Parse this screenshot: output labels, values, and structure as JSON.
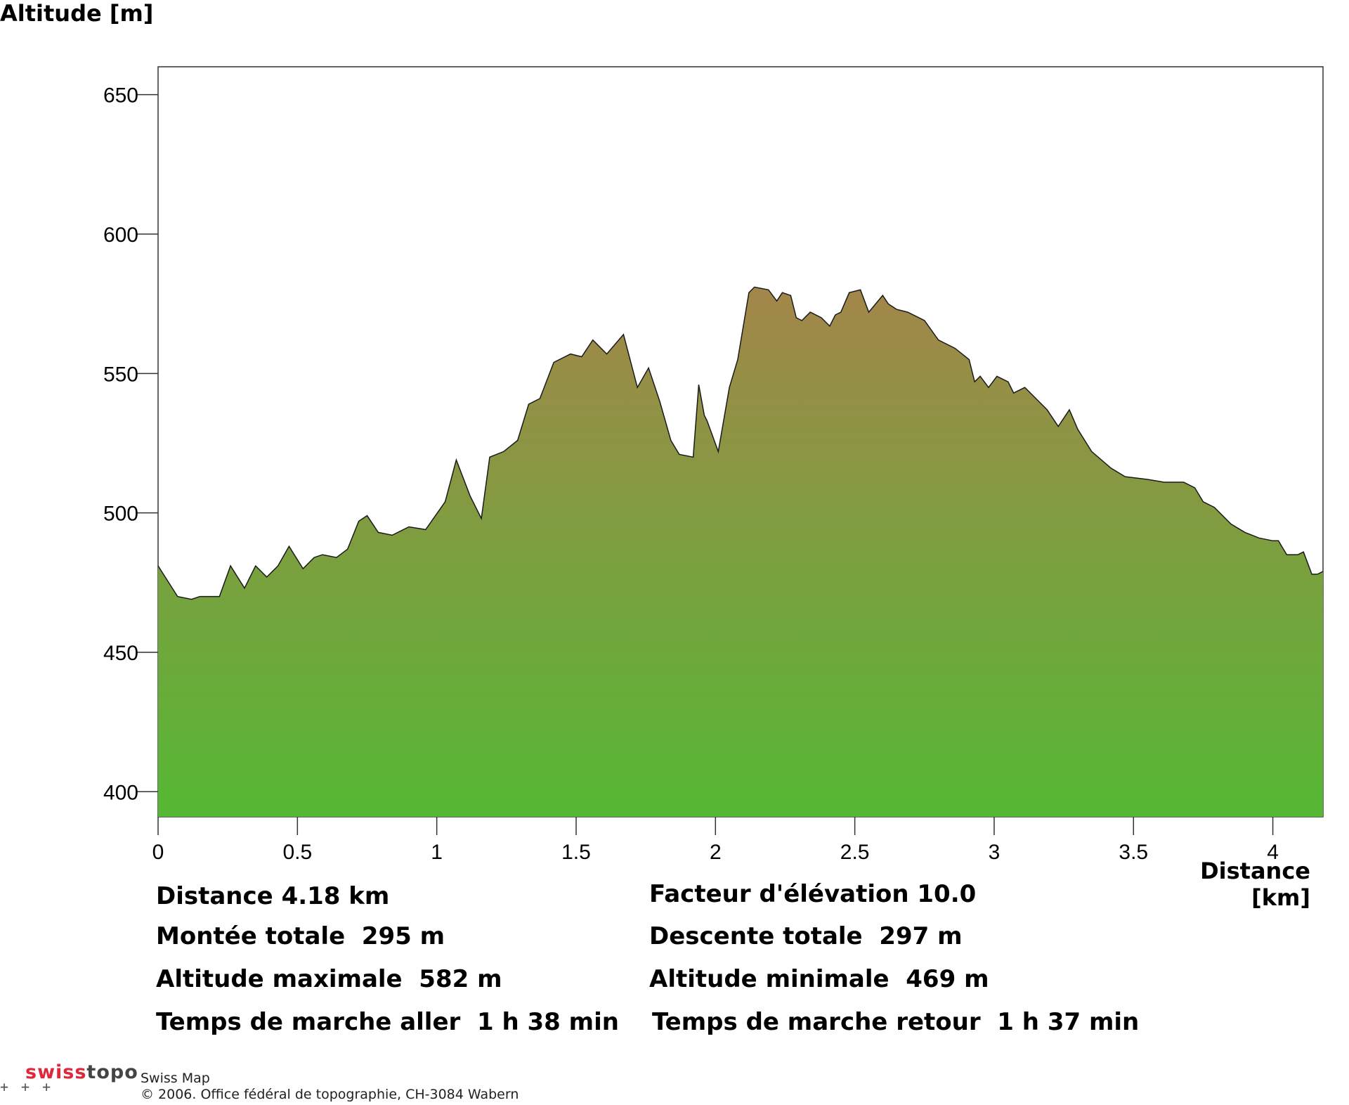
{
  "chart_data": {
    "type": "area",
    "ylabel": "Altitude [m]",
    "xlabel": "Distance [km]",
    "xlim": [
      0,
      4.18
    ],
    "ylim": [
      391,
      660
    ],
    "xticks": [
      "0",
      "0.5",
      "1",
      "1.5",
      "2",
      "2.5",
      "3",
      "3.5",
      "4"
    ],
    "yticks": [
      "400",
      "450",
      "500",
      "550",
      "600",
      "650"
    ],
    "colors": {
      "fill_top": "#a3864a",
      "fill_bottom": "#55b834",
      "stroke": "#1a1a1a"
    },
    "x": [
      0,
      0.07,
      0.12,
      0.15,
      0.19,
      0.22,
      0.26,
      0.31,
      0.35,
      0.39,
      0.43,
      0.47,
      0.52,
      0.56,
      0.59,
      0.64,
      0.68,
      0.72,
      0.75,
      0.79,
      0.84,
      0.88,
      0.9,
      0.96,
      1.03,
      1.07,
      1.12,
      1.16,
      1.19,
      1.24,
      1.29,
      1.33,
      1.37,
      1.42,
      1.48,
      1.52,
      1.56,
      1.61,
      1.67,
      1.72,
      1.76,
      1.8,
      1.84,
      1.87,
      1.92,
      1.94,
      1.96,
      1.97,
      2.01,
      2.05,
      2.08,
      2.12,
      2.14,
      2.19,
      2.22,
      2.24,
      2.27,
      2.29,
      2.31,
      2.34,
      2.38,
      2.41,
      2.43,
      2.45,
      2.48,
      2.52,
      2.55,
      2.6,
      2.62,
      2.65,
      2.69,
      2.75,
      2.8,
      2.86,
      2.91,
      2.93,
      2.95,
      2.98,
      3.01,
      3.05,
      3.07,
      3.11,
      3.16,
      3.19,
      3.23,
      3.27,
      3.3,
      3.35,
      3.42,
      3.47,
      3.55,
      3.61,
      3.68,
      3.72,
      3.75,
      3.79,
      3.85,
      3.9,
      3.95,
      4.0,
      4.02,
      4.05,
      4.09,
      4.11,
      4.14,
      4.16,
      4.18
    ],
    "values": [
      481,
      470,
      469,
      470,
      470,
      470,
      481,
      473,
      481,
      477,
      481,
      488,
      480,
      484,
      485,
      484,
      487,
      497,
      499,
      493,
      492,
      494,
      495,
      494,
      504,
      519,
      506,
      498,
      520,
      522,
      526,
      539,
      541,
      554,
      557,
      556,
      562,
      557,
      564,
      545,
      552,
      540,
      526,
      521,
      520,
      546,
      535,
      533,
      522,
      545,
      555,
      579,
      581,
      580,
      576,
      579,
      578,
      570,
      569,
      572,
      570,
      567,
      571,
      572,
      579,
      580,
      572,
      578,
      575,
      573,
      572,
      569,
      562,
      559,
      555,
      547,
      549,
      545,
      549,
      547,
      543,
      545,
      540,
      537,
      531,
      537,
      530,
      522,
      516,
      513,
      512,
      511,
      511,
      509,
      504,
      502,
      496,
      493,
      491,
      490,
      490,
      485,
      485,
      486,
      478,
      478,
      479
    ]
  },
  "stats": {
    "distance": "Distance 4.18 km",
    "facteur": "Facteur d'élévation 10.0",
    "montee": "Montée totale  295 m",
    "descente": "Descente totale  297 m",
    "alt_max": "Altitude maximale  582 m",
    "alt_min": "Altitude minimale  469 m",
    "aller": "Temps de marche aller  1 h 38 min",
    "retour": "Temps de marche retour  1 h 37 min"
  },
  "footer": {
    "brand_red": "swiss",
    "brand_dark": "topo",
    "product": "Swiss Map",
    "copyright": "© 2006. Office fédéral de topographie, CH-3084 Wabern",
    "marks": "+++"
  }
}
